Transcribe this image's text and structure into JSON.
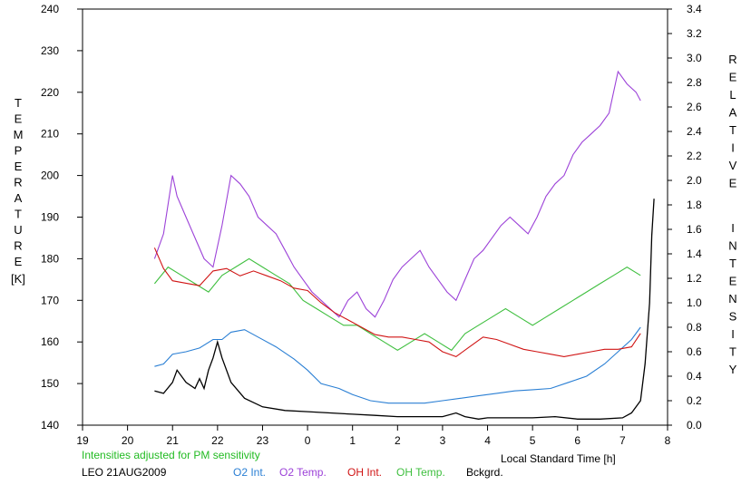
{
  "chart_data": {
    "type": "line",
    "station": "LEO 21AUG2009",
    "note": "Intensities adjusted for PM sensitivity",
    "xlabel": "Local Standard Time [h]",
    "ylabel_left": "TEMPERATURE",
    "ylabel_left_unit": "[K]",
    "ylabel_right": "RELATIVE INTENSITY",
    "x_ticks": [
      "19",
      "20",
      "21",
      "22",
      "23",
      "0",
      "1",
      "2",
      "3",
      "4",
      "5",
      "6",
      "7",
      "8"
    ],
    "xlim": [
      19,
      32
    ],
    "ylim_left": [
      140,
      240
    ],
    "y_left_ticks": [
      "140",
      "150",
      "160",
      "170",
      "180",
      "190",
      "200",
      "210",
      "220",
      "230",
      "240"
    ],
    "ylim_right": [
      0.0,
      3.4
    ],
    "y_right_ticks": [
      "0.0",
      "0.2",
      "0.4",
      "0.6",
      "0.8",
      "1.0",
      "1.2",
      "1.4",
      "1.6",
      "1.8",
      "2.0",
      "2.2",
      "2.4",
      "2.6",
      "2.8",
      "3.0",
      "3.2",
      "3.4"
    ],
    "grid": false,
    "legend": "bottom",
    "series": [
      {
        "name": "O2 Int.",
        "axis": "right",
        "color": "#2a7fd4",
        "x": [
          20.6,
          20.8,
          21.0,
          21.3,
          21.6,
          21.9,
          22.1,
          22.3,
          22.6,
          22.9,
          23.3,
          23.7,
          24.0,
          24.3,
          24.7,
          25.0,
          25.4,
          25.8,
          26.2,
          26.6,
          27.0,
          27.4,
          27.8,
          28.2,
          28.6,
          29.0,
          29.4,
          29.8,
          30.2,
          30.6,
          30.9,
          31.2,
          31.4
        ],
        "y": [
          0.48,
          0.5,
          0.58,
          0.6,
          0.63,
          0.7,
          0.7,
          0.76,
          0.78,
          0.72,
          0.64,
          0.54,
          0.45,
          0.34,
          0.3,
          0.25,
          0.2,
          0.18,
          0.18,
          0.18,
          0.2,
          0.22,
          0.24,
          0.26,
          0.28,
          0.29,
          0.3,
          0.35,
          0.4,
          0.5,
          0.6,
          0.7,
          0.8
        ]
      },
      {
        "name": "O2 Temp.",
        "axis": "left",
        "color": "#9c42d8",
        "x": [
          20.6,
          20.8,
          21.0,
          21.1,
          21.3,
          21.5,
          21.7,
          21.9,
          22.1,
          22.3,
          22.5,
          22.7,
          22.9,
          23.1,
          23.3,
          23.5,
          23.7,
          23.9,
          24.1,
          24.3,
          24.5,
          24.7,
          24.9,
          25.1,
          25.3,
          25.5,
          25.7,
          25.9,
          26.1,
          26.3,
          26.5,
          26.7,
          26.9,
          27.1,
          27.3,
          27.5,
          27.7,
          27.9,
          28.1,
          28.3,
          28.5,
          28.7,
          28.9,
          29.1,
          29.3,
          29.5,
          29.7,
          29.9,
          30.1,
          30.3,
          30.5,
          30.7,
          30.9,
          31.1,
          31.3,
          31.4
        ],
        "y": [
          180,
          186,
          200,
          195,
          190,
          185,
          180,
          178,
          188,
          200,
          198,
          195,
          190,
          188,
          186,
          182,
          178,
          175,
          172,
          170,
          168,
          166,
          170,
          172,
          168,
          166,
          170,
          175,
          178,
          180,
          182,
          178,
          175,
          172,
          170,
          175,
          180,
          182,
          185,
          188,
          190,
          188,
          186,
          190,
          195,
          198,
          200,
          205,
          208,
          210,
          212,
          215,
          225,
          222,
          220,
          218
        ]
      },
      {
        "name": "OH Int.",
        "axis": "right",
        "color": "#d01414",
        "x": [
          20.6,
          20.8,
          21.0,
          21.3,
          21.6,
          21.9,
          22.2,
          22.5,
          22.8,
          23.1,
          23.4,
          23.7,
          24.0,
          24.3,
          24.6,
          24.9,
          25.2,
          25.5,
          25.8,
          26.1,
          26.4,
          26.7,
          27.0,
          27.3,
          27.6,
          27.9,
          28.2,
          28.5,
          28.8,
          29.1,
          29.4,
          29.7,
          30.0,
          30.3,
          30.6,
          30.9,
          31.2,
          31.4
        ],
        "y": [
          1.45,
          1.28,
          1.18,
          1.16,
          1.14,
          1.26,
          1.28,
          1.22,
          1.26,
          1.22,
          1.18,
          1.12,
          1.1,
          1.0,
          0.92,
          0.86,
          0.8,
          0.74,
          0.72,
          0.72,
          0.7,
          0.68,
          0.6,
          0.56,
          0.64,
          0.72,
          0.7,
          0.66,
          0.62,
          0.6,
          0.58,
          0.56,
          0.58,
          0.6,
          0.62,
          0.62,
          0.64,
          0.75
        ]
      },
      {
        "name": "OH Temp.",
        "axis": "left",
        "color": "#3fbf3f",
        "x": [
          20.6,
          20.9,
          21.2,
          21.5,
          21.8,
          22.1,
          22.4,
          22.7,
          23.0,
          23.3,
          23.6,
          23.9,
          24.2,
          24.5,
          24.8,
          25.1,
          25.4,
          25.7,
          26.0,
          26.3,
          26.6,
          26.9,
          27.2,
          27.5,
          27.8,
          28.1,
          28.4,
          28.7,
          29.0,
          29.3,
          29.6,
          29.9,
          30.2,
          30.5,
          30.8,
          31.1,
          31.4
        ],
        "y": [
          174,
          178,
          176,
          174,
          172,
          176,
          178,
          180,
          178,
          176,
          174,
          170,
          168,
          166,
          164,
          164,
          162,
          160,
          158,
          160,
          162,
          160,
          158,
          162,
          164,
          166,
          168,
          166,
          164,
          166,
          168,
          170,
          172,
          174,
          176,
          178,
          176
        ]
      },
      {
        "name": "Bckgrd.",
        "axis": "right",
        "color": "#000000",
        "x": [
          20.6,
          20.8,
          21.0,
          21.1,
          21.3,
          21.5,
          21.6,
          21.7,
          21.8,
          21.9,
          22.0,
          22.1,
          22.3,
          22.6,
          23.0,
          23.5,
          24.0,
          24.5,
          25.0,
          25.5,
          26.0,
          26.5,
          27.0,
          27.3,
          27.5,
          27.8,
          28.0,
          28.5,
          29.0,
          29.5,
          30.0,
          30.5,
          31.0,
          31.2,
          31.4,
          31.5,
          31.6,
          31.65,
          31.7
        ],
        "y": [
          0.28,
          0.26,
          0.35,
          0.45,
          0.35,
          0.3,
          0.38,
          0.3,
          0.45,
          0.55,
          0.68,
          0.55,
          0.35,
          0.22,
          0.15,
          0.12,
          0.11,
          0.1,
          0.09,
          0.08,
          0.07,
          0.07,
          0.07,
          0.1,
          0.07,
          0.05,
          0.06,
          0.06,
          0.06,
          0.07,
          0.05,
          0.05,
          0.06,
          0.1,
          0.2,
          0.5,
          1.0,
          1.55,
          1.85
        ]
      }
    ]
  }
}
